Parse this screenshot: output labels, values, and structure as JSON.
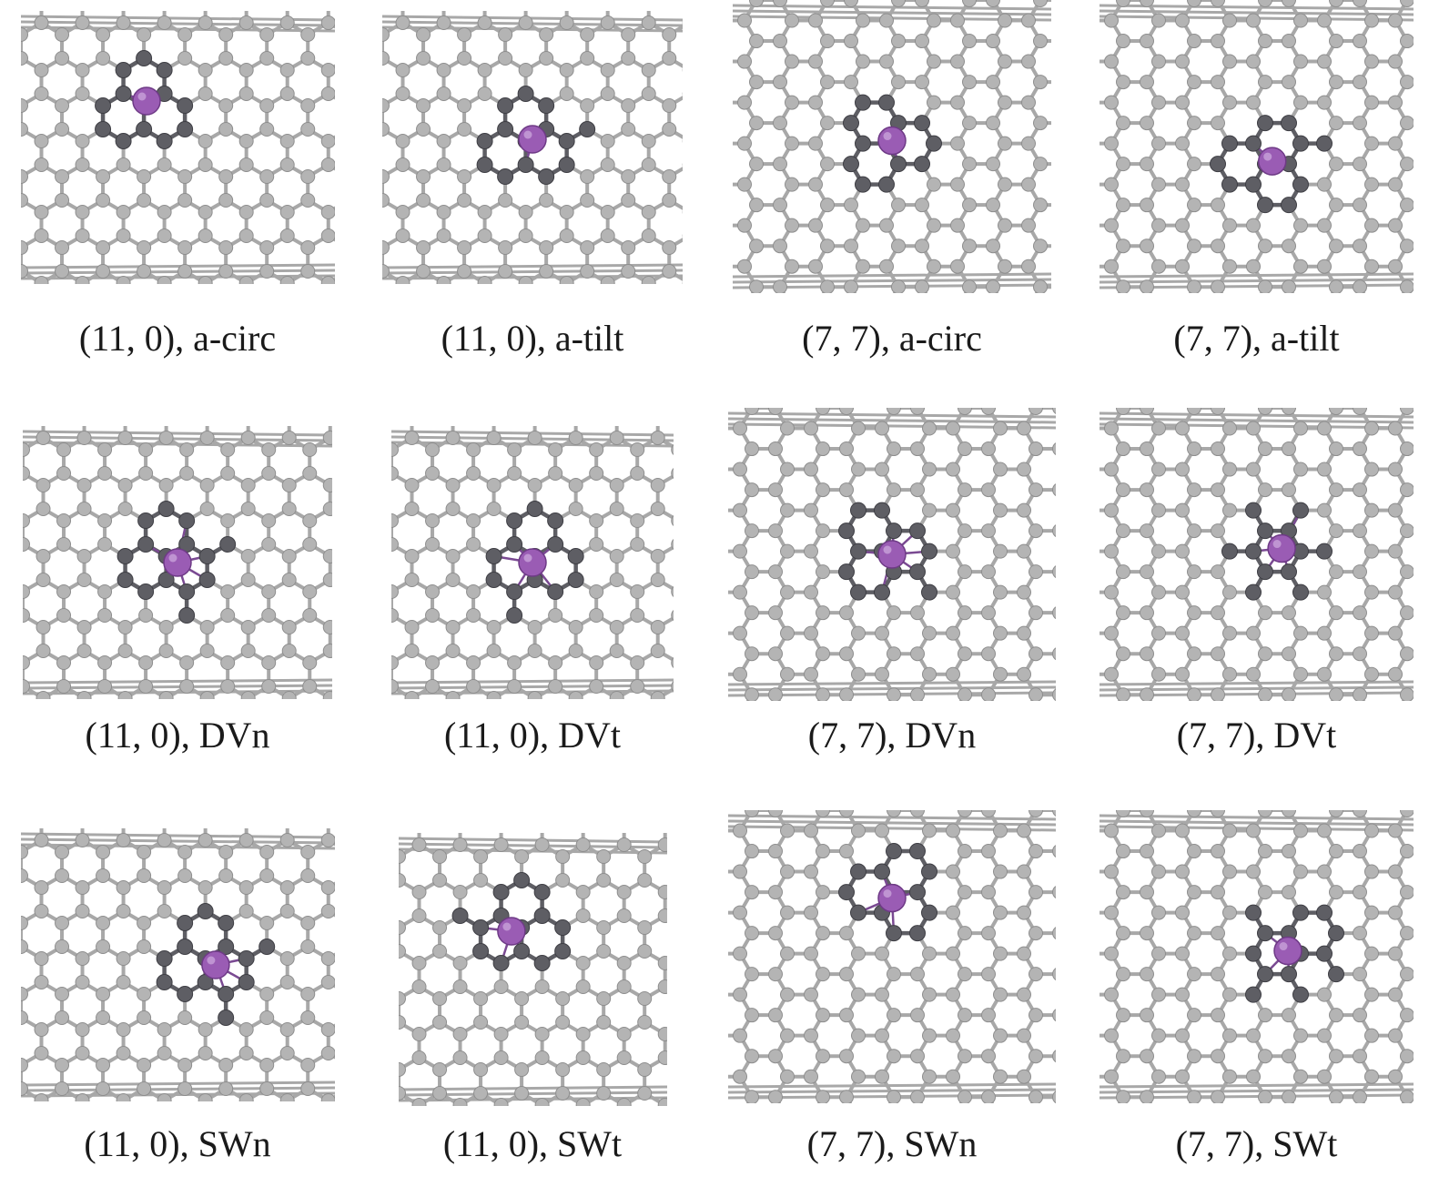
{
  "panels": [
    {
      "caption": "(11, 0), a-circ",
      "tube": "zigzag",
      "defect": "a-circ"
    },
    {
      "caption": "(11, 0), a-tilt",
      "tube": "zigzag",
      "defect": "a-tilt"
    },
    {
      "caption": "(7, 7), a-circ",
      "tube": "armchair",
      "defect": "a-circ"
    },
    {
      "caption": "(7, 7), a-tilt",
      "tube": "armchair",
      "defect": "a-tilt"
    },
    {
      "caption": "(11, 0), DVn",
      "tube": "zigzag",
      "defect": "DVn"
    },
    {
      "caption": "(11, 0), DVt",
      "tube": "zigzag",
      "defect": "DVt"
    },
    {
      "caption": "(7, 7), DVn",
      "tube": "armchair",
      "defect": "DVn"
    },
    {
      "caption": "(7, 7), DVt",
      "tube": "armchair",
      "defect": "DVt"
    },
    {
      "caption": "(11, 0), SWn",
      "tube": "zigzag",
      "defect": "SWn"
    },
    {
      "caption": "(11, 0), SWt",
      "tube": "zigzag",
      "defect": "SWt"
    },
    {
      "caption": "(7, 7), SWn",
      "tube": "armchair",
      "defect": "SWn"
    },
    {
      "caption": "(7, 7), SWt",
      "tube": "armchair",
      "defect": "SWt"
    }
  ],
  "colors": {
    "carbon": "#b4b4b4",
    "carbon_bond": "#a8a8a8",
    "defect_carbon": "#5e5e64",
    "dopant": "#9a5cb4",
    "caption": "#1a1a1a"
  }
}
